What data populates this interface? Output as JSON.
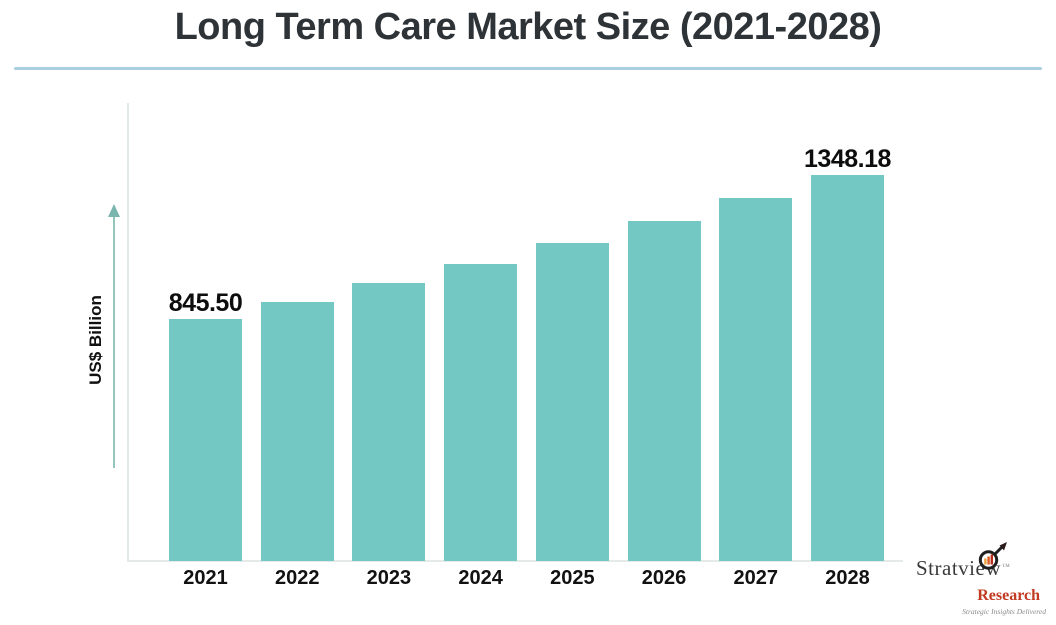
{
  "title": "Long Term Care Market Size (2021-2028)",
  "chart_data": {
    "type": "bar",
    "title": "Long Term Care Market Size (2021-2028)",
    "categories": [
      "2021",
      "2022",
      "2023",
      "2024",
      "2025",
      "2026",
      "2027",
      "2028"
    ],
    "values": [
      845.5,
      905,
      971,
      1038,
      1111,
      1188,
      1268,
      1348.18
    ],
    "values_note": "only first and last bars are labeled in the image; middle values estimated from bar heights",
    "data_labels": [
      "845.50",
      "",
      "",
      "",
      "",
      "",
      "",
      "1348.18"
    ],
    "xlabel": "",
    "ylabel": "US$ Billion",
    "ylim": [
      0,
      1600
    ],
    "grid": false,
    "legend": false,
    "bar_color": "#74c8c4",
    "axis_color": "#e2ebe7",
    "arrow_color": "#7ab5ae"
  },
  "branding": {
    "name": "Stratview",
    "trademark": "TM",
    "research": "Research",
    "tagline": "Strategic Insights Delivered",
    "name_color": "#3a3a3a",
    "research_color": "#c23a22",
    "magnifier_icon": "magnifier-with-bars-and-arrow"
  },
  "colors": {
    "background": "#ffffff",
    "title_text": "#2e3337",
    "title_underline": "#a9cfe1",
    "label_text": "#121212",
    "bar_fill": "#74c8c4"
  },
  "icons": {
    "y_axis_arrow": "up-arrow"
  }
}
